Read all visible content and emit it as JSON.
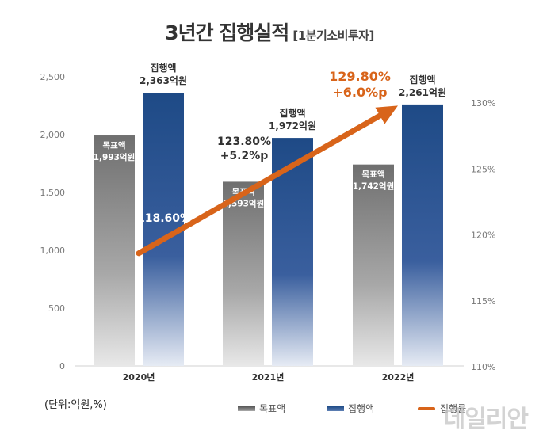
{
  "title": "3년간 집행실적",
  "subtitle": "[1분기소비투자]",
  "unit_note": "(단위:억원,%)",
  "legend": {
    "target": "목표액",
    "executed": "집행액",
    "rate": "집행률"
  },
  "watermark": "데일리안",
  "colors": {
    "target_top": "#6f6f6f",
    "target_bottom": "#e8e8e8",
    "executed_top": "#1e4a86",
    "executed_bottom": "#e6ebf4",
    "arrow": "#d8641a",
    "axis_text": "#777777"
  },
  "chart_data": {
    "type": "bar",
    "categories": [
      "2020년",
      "2021년",
      "2022년"
    ],
    "series": [
      {
        "name": "목표액",
        "values": [
          1993,
          1593,
          1742
        ],
        "labels": [
          "목표액\n1,993억원",
          "목표액\n1,593억원",
          "목표액\n1,742억원"
        ]
      },
      {
        "name": "집행액",
        "values": [
          2363,
          1972,
          2261
        ],
        "labels": [
          "집행액\n2,363억원",
          "집행액\n1,972억원",
          "집행액\n2,261억원"
        ]
      }
    ],
    "rate_series": {
      "name": "집행률",
      "values": [
        118.6,
        123.8,
        129.8
      ],
      "labels": [
        "118.60%",
        "123.80%\n+5.2%p",
        "129.80%\n+6.0%p"
      ]
    },
    "ylim": [
      0,
      2500
    ],
    "yticks": [
      "0",
      "500",
      "1,000",
      "1,500",
      "2,000",
      "2,500"
    ],
    "y2lim": [
      110,
      130
    ],
    "y2ticks": [
      "110%",
      "115%",
      "120%",
      "125%",
      "130%"
    ],
    "grid": false,
    "legend_position": "bottom"
  }
}
